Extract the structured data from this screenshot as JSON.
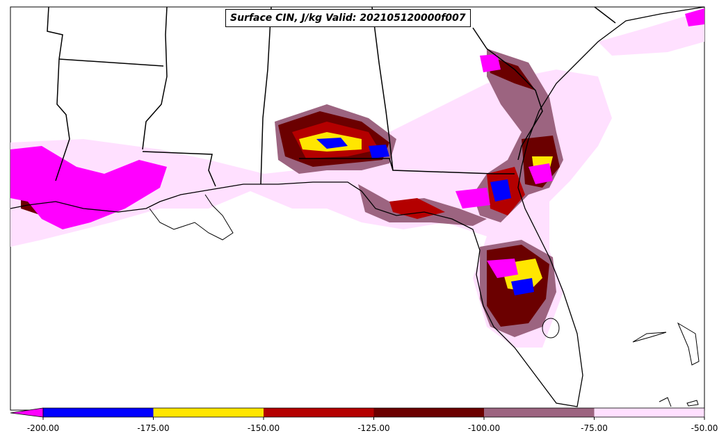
{
  "title": "Surface CIN, J/kg Valid: 202105120000f007",
  "colorbar": {
    "ticks": [
      "-200.00",
      "-175.00",
      "-150.00",
      "-125.00",
      "-100.00",
      "-75.00",
      "-50.00"
    ],
    "bins": [
      {
        "from": -225,
        "to": -200,
        "color": "#ff00ff"
      },
      {
        "from": -200,
        "to": -175,
        "color": "#0000ff"
      },
      {
        "from": -175,
        "to": -150,
        "color": "#ffe600"
      },
      {
        "from": -150,
        "to": -125,
        "color": "#b40000"
      },
      {
        "from": -125,
        "to": -100,
        "color": "#6b0000"
      },
      {
        "from": -100,
        "to": -75,
        "color": "#9c6480"
      },
      {
        "from": -75,
        "to": -50,
        "color": "#ffe0ff"
      }
    ]
  }
}
